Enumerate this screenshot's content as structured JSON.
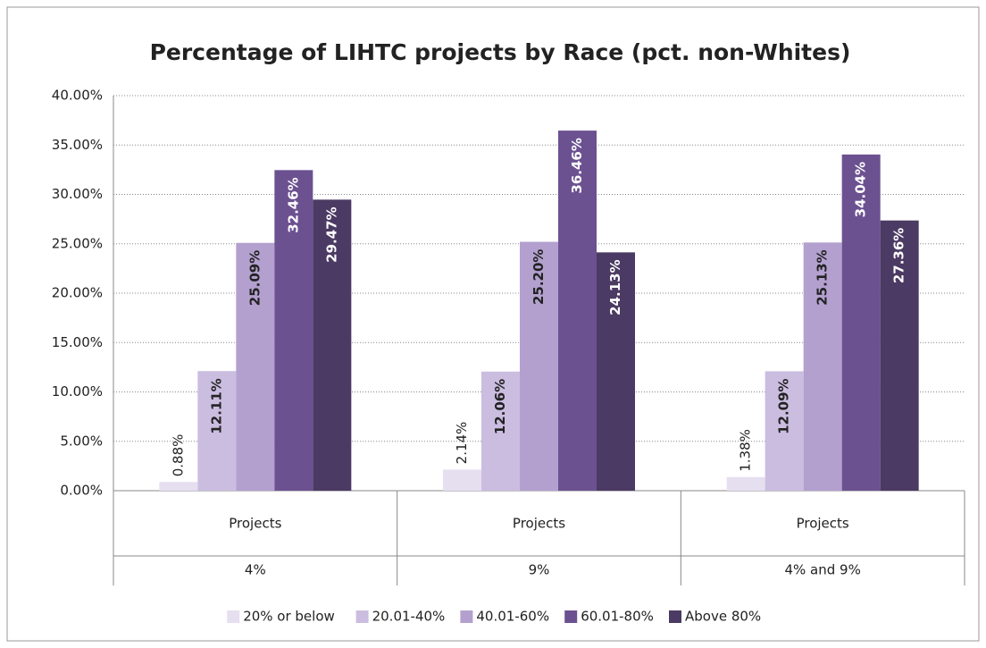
{
  "chart_data": {
    "type": "bar",
    "title": "Percentage of LIHTC projects by Race (pct. non-Whites)",
    "category_headers": [
      "Projects",
      "Projects",
      "Projects"
    ],
    "categories": [
      "4%",
      "9%",
      "4% and 9%"
    ],
    "series": [
      {
        "name": "20% or below",
        "color": "#e6dff0",
        "label_color": "#222222",
        "values": [
          0.88,
          2.14,
          1.38
        ],
        "value_labels": [
          "0.88%",
          "2.14%",
          "1.38%"
        ]
      },
      {
        "name": "20.01-40%",
        "color": "#cbbde0",
        "label_color": "#222222",
        "values": [
          12.11,
          12.06,
          12.09
        ],
        "value_labels": [
          "12.11%",
          "12.06%",
          "12.09%"
        ]
      },
      {
        "name": "40.01-60%",
        "color": "#b3a0cf",
        "label_color": "#222222",
        "values": [
          25.09,
          25.2,
          25.13
        ],
        "value_labels": [
          "25.09%",
          "25.20%",
          "25.13%"
        ]
      },
      {
        "name": "60.01-80%",
        "color": "#6c5191",
        "label_color": "#ffffff",
        "values": [
          32.46,
          36.46,
          34.04
        ],
        "value_labels": [
          "32.46%",
          "36.46%",
          "34.04%"
        ]
      },
      {
        "name": "Above 80%",
        "color": "#4b3a63",
        "label_color": "#ffffff",
        "values": [
          29.47,
          24.13,
          27.36
        ],
        "value_labels": [
          "29.47%",
          "24.13%",
          "27.36%"
        ]
      }
    ],
    "ylim": [
      0,
      40
    ],
    "yticks": [
      {
        "value": 0,
        "label": "0.00%"
      },
      {
        "value": 5,
        "label": "5.00%"
      },
      {
        "value": 10,
        "label": "10.00%"
      },
      {
        "value": 15,
        "label": "15.00%"
      },
      {
        "value": 20,
        "label": "20.00%"
      },
      {
        "value": 25,
        "label": "25.00%"
      },
      {
        "value": 30,
        "label": "30.00%"
      },
      {
        "value": 35,
        "label": "35.00%"
      },
      {
        "value": 40,
        "label": "40.00%"
      }
    ],
    "grid": true,
    "legend": "bottom"
  }
}
